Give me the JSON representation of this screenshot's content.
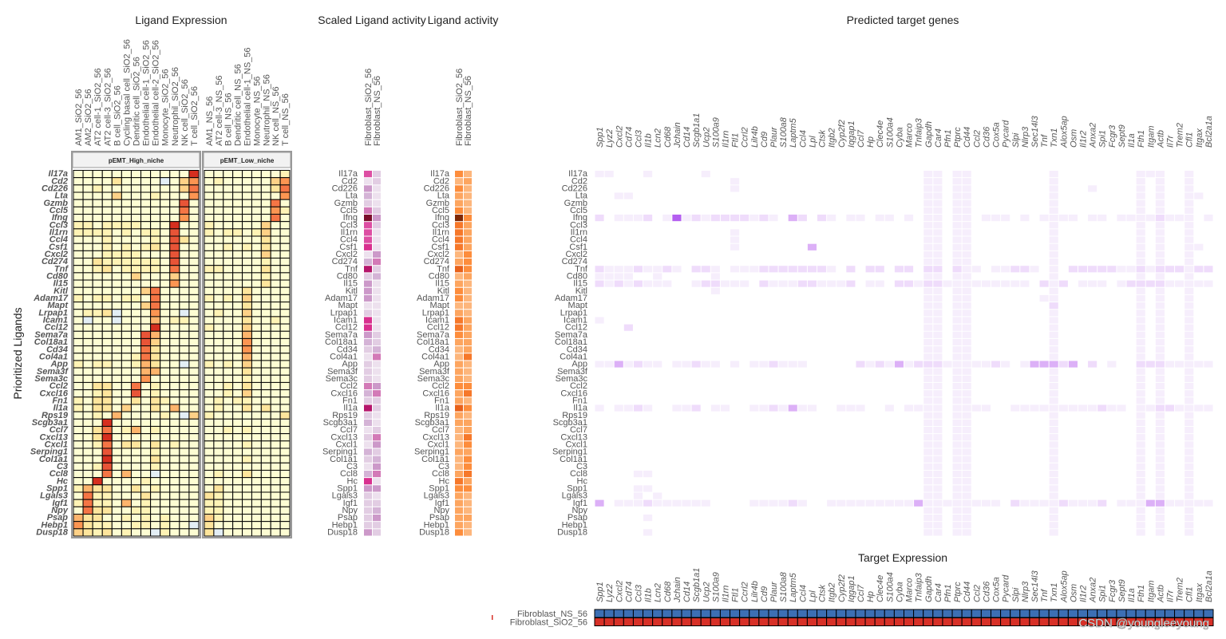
{
  "titles": {
    "ligand_expression": "Ligand Expression",
    "scaled_ligand_activity": "Scaled Ligand activity",
    "ligand_activity": "Ligand activity",
    "predicted_target_genes": "Predicted target genes",
    "target_expression": "Target Expression",
    "y_axis": "Prioritized Ligands"
  },
  "watermark": "CSDN @youngleeyoung",
  "chart_data": [
    {
      "type": "heatmap",
      "title": "Ligand Expression",
      "ylabel": "Prioritized Ligands",
      "ligands": [
        "Il17a",
        "Cd2",
        "Cd226",
        "Lta",
        "Gzmb",
        "Ccl5",
        "Ifng",
        "Ccl3",
        "Il1rn",
        "Ccl4",
        "Csf1",
        "Cxcl2",
        "Cd274",
        "Tnf",
        "Cd80",
        "Il15",
        "Kitl",
        "Adam17",
        "Mapt",
        "Lrpap1",
        "Icam1",
        "Ccl12",
        "Sema7a",
        "Col18a1",
        "Cd34",
        "Col4a1",
        "App",
        "Sema3f",
        "Sema3c",
        "Ccl2",
        "Cxcl16",
        "Fn1",
        "Il1a",
        "Rps19",
        "Scgb3a1",
        "Ccl7",
        "Cxcl13",
        "Cxcl1",
        "Serping1",
        "Col1a1",
        "C3",
        "Ccl8",
        "Hc",
        "Spp1",
        "Lgals3",
        "Igf1",
        "Npy",
        "Psap",
        "Hebp1",
        "Dusp18"
      ],
      "color_scale": [
        "#e3eef5",
        "#fdfdd3",
        "#fff3b5",
        "#fee59c",
        "#fed187",
        "#fdb46c",
        "#fc9552",
        "#f57545",
        "#e85437",
        "#d62f1f"
      ],
      "value_scale": "0 (low) to 9 (high) per cell",
      "panels": [
        {
          "strip": "pEMT_High_niche",
          "columns": [
            "AM1_SiO2_56",
            "AM2_SiO2_56",
            "AT2 cell-1_SiO2_56",
            "AT2 cell-3_SiO2_56",
            "B cell_SiO2_56",
            "Cycling basal cell_SiO2_56",
            "Dendritic cell_SiO2_56",
            "Endothelial cell-1_SiO2_56",
            "Endothelial cell-2_SiO2_56",
            "Monocyte_SiO2_56",
            "Neutrophil_SiO2_56",
            "NK cell_SiO2_56",
            "T cell_SiO2_56"
          ],
          "rows": [
            "1111111111119",
            "1111311110146",
            "1121111111147",
            "1111411121116",
            "1111111111181",
            "1111111111171",
            "1111111111161",
            "2212222111911",
            "2222121221811",
            "1112111121831",
            "1112121231811",
            "1112222111811",
            "1132222221811",
            "1123122221711",
            "1111114111411",
            "1111111111611",
            "1111111471111",
            "2122122171111",
            "1111111471111",
            "1223011161101",
            "1011011151221",
            "1111111191111",
            "1111111851111",
            "1111111841111",
            "1111111731111",
            "1111112731111",
            "2122112531101",
            "1111111551111",
            "1111111611111",
            "1133117121111",
            "1123118121111",
            "2133113132111",
            "2133141131511",
            "1121511112104",
            "1119111111111",
            "1137125121111",
            "1139111111111",
            "1127133131211",
            "1118111121111",
            "1119111131111",
            "1128111121111",
            "1117151101111",
            "1191111211111",
            "2533113121111",
            "1722111311111",
            "2722151211111",
            "1733112211111",
            "5331121212111",
            "6322112212110",
            "4323121102111"
          ]
        },
        {
          "strip": "pEMT_Low_niche",
          "columns": [
            "AM1_NS_56",
            "AT2 cell-3_NS_56",
            "B cell_NS_56",
            "Dendritic cell_NS_56",
            "Endothelial cell-1_NS_56",
            "Monocyte_NS_56",
            "Neutrophil_NS_56",
            "NK cell_NS_56",
            "T cell_NS_56"
          ],
          "rows": [
            "111111112",
            "121111146",
            "111111137",
            "111111116",
            "111111171",
            "111111162",
            "111111171",
            "211111411",
            "212212411",
            "111111311",
            "112121311",
            "111111411",
            "111111211",
            "221111311",
            "111111211",
            "111111311",
            "111131111",
            "212141111",
            "111131111",
            "121141111",
            "111131121",
            "211141111",
            "111151111",
            "111161111",
            "111161111",
            "111151111",
            "212141111",
            "111131111",
            "111121111",
            "112131111",
            "112141111",
            "121221111",
            "121131311",
            "211111113",
            "111111111",
            "112121111",
            "111111111",
            "111121111",
            "111111111",
            "111121111",
            "111111111",
            "121131111",
            "111111111",
            "131111111",
            "321111111",
            "221111111",
            "221111111",
            "421111111",
            "311111111",
            "301111111"
          ]
        }
      ]
    },
    {
      "type": "heatmap",
      "title": "Scaled Ligand activity",
      "columns": [
        "Fibroblast_SiO2_56",
        "Fibroblast_NS_56"
      ],
      "color_scale": [
        "#f5eef6",
        "#ede1ee",
        "#e2cde3",
        "#d4b3d6",
        "#cc99c9",
        "#d37ab7",
        "#dd4ea3",
        "#d8308f",
        "#b5156b",
        "#7a0d2b"
      ],
      "rows": [
        "62",
        "12",
        "41",
        "31",
        "21",
        "52",
        "94",
        "62",
        "61",
        "61",
        "71",
        "14",
        "35",
        "82",
        "23",
        "41",
        "41",
        "41",
        "11",
        "21",
        "71",
        "71",
        "42",
        "32",
        "23",
        "15",
        "21",
        "21",
        "21",
        "54",
        "35",
        "22",
        "82",
        "21",
        "31",
        "12",
        "25",
        "14",
        "32",
        "23",
        "14",
        "35",
        "71",
        "44",
        "21",
        "22",
        "23",
        "24",
        "22",
        "42"
      ]
    },
    {
      "type": "heatmap",
      "title": "Ligand activity",
      "columns": [
        "Fibroblast_SiO2_56",
        "Fibroblast_NS_56"
      ],
      "color_scale": [
        "#fff5eb",
        "#fee6ce",
        "#fdd0a2",
        "#fdb67c",
        "#fda55f",
        "#fd8d3c",
        "#f6782a",
        "#e8611a",
        "#cb4b08",
        "#7f2704"
      ],
      "rows": [
        "53",
        "34",
        "53",
        "43",
        "43",
        "53",
        "95",
        "64",
        "64",
        "64",
        "64",
        "35",
        "45",
        "75",
        "34",
        "43",
        "53",
        "53",
        "33",
        "43",
        "64",
        "64",
        "54",
        "44",
        "34",
        "36",
        "43",
        "43",
        "43",
        "55",
        "46",
        "43",
        "75",
        "43",
        "44",
        "34",
        "36",
        "35",
        "44",
        "35",
        "35",
        "46",
        "64",
        "55",
        "43",
        "43",
        "43",
        "44",
        "43",
        "53"
      ]
    },
    {
      "type": "heatmap",
      "title": "Predicted target genes",
      "targets": [
        "Spp1",
        "Lyz2",
        "Cxcl2",
        "Cd74",
        "Ccl3",
        "Il1b",
        "Lcn2",
        "Cd68",
        "Jchain",
        "Cd14",
        "Scgb1a1",
        "Ucp2",
        "S100a9",
        "Il1rn",
        "Ftl1",
        "Ccrl2",
        "Lilr4b",
        "Cd9",
        "Plaur",
        "S100a8",
        "Laptm5",
        "Ccl4",
        "Lpl",
        "Ctsk",
        "Itgb2",
        "Cyp2f2",
        "Iqgap1",
        "Ccl7",
        "Hp",
        "Clec4e",
        "S100a4",
        "Cyba",
        "Marco",
        "Tnfaip3",
        "Gapdh",
        "Car4",
        "Pfn1",
        "Ptprc",
        "Cd44",
        "Ccl2",
        "Cd36",
        "Cox5a",
        "Pycard",
        "Slpi",
        "Nlrp3",
        "Sec14l3",
        "Tnf",
        "Txn1",
        "Alox5ap",
        "Osm",
        "Il1r2",
        "Anxa2",
        "Spi1",
        "Fcgr3",
        "Sept9",
        "Il1a",
        "Fth1",
        "Itgam",
        "Actb",
        "Il7r",
        "Trem2",
        "Cfl1",
        "Itgax",
        "Bcl2a1a"
      ],
      "color_scale": [
        "#ffffff",
        "#f6eefc",
        "#efdcfb",
        "#dcb0f7",
        "#b45ef0"
      ],
      "value_scale": "0 (none) to 4 (strong regulatory potential)",
      "rows": [
        "11000100 00010000 00000000 00000000 00110110 00000001 00000000 11100100",
        "00000000 00000010 00000000 00000000 00110110 00000001 00000000 10100100",
        "00000000 00000010 00000000 00000000 00110110 00000001 00010000 10100100",
        "00110000 00000000 00000000 00000000 00110110 00000001 00000000 10100110",
        "00000000 00000000 00000000 00000000 00110110 00000001 00000000 10100100",
        "00000000 00000000 00000000 00000000 00110110 00000001 00000000 10100100",
        "20111201 41212222 12103202 10110110 10110110 11101011 11011011 11211101",
        "00000000 00000000 00000000 00000000 00110110 00000001 00000000 10100100",
        "00000000 00000010 00000000 00000000 00110110 00000001 00000000 10100100",
        "00000000 00000010 00000000 00000000 00110110 00000001 00000000 10100100",
        "00000000 00000010 00000030 00000000 00110110 00000001 00000000 10100110",
        "00000000 00000000 00000000 00000000 00110110 00000001 00000000 10100100",
        "00000000 00000000 00000000 00000000 00110110 00000001 00000000 10100100",
        "21112112 10221011 12222222 10202202 20220211 01122101 02222211 21222122",
        "11110010 00001000 00000000 00000000 00110110 00000001 00000000 10100100",
        "21212111 00122111 02111221 11201102 21221111 11111021 20111012 22211111",
        "00000000 00001000 00000000 00000000 00110110 00000001 00000000 10100100",
        "00000000 00000000 00000000 00000000 00110110 00000011 00000000 10100100",
        "00000000 00000000 00000000 00000000 00110110 00000002 00000000 10100100",
        "00000000 00000000 00000000 00000000 00110110 00000001 00000000 10100100",
        "10000000 00000000 00000000 00000000 00110110 00000001 00000000 10100100",
        "00020000 00000000 00000000 00000000 00110110 00000001 00000000 10100100",
        "00000000 00000000 00000000 00000000 00110110 00000001 00000000 10100100",
        "00000000 00000000 00000000 00000000 00110110 00000001 00000000 10100100",
        "00000000 00000000 00000000 00000000 00110110 00000001 00000000 10100100",
        "00000000 00000000 00000000 00000000 00110110 00000001 00000000 10100100",
        "11312110 11211010 11211100 00021213 12221111 12101333 23020100 22211111",
        "00000000 00000000 00000000 00000000 00110110 00000001 00000000 10100100",
        "00000000 00000000 00000000 00000000 00110110 00000001 00000000 10100100",
        "00000000 00000000 00000000 00000000 00110110 00000001 00000000 10100100",
        "00000000 00000000 00000000 00000000 00110110 00000001 00000000 10100100",
        "00000000 00000000 00000000 00000000 00110110 00000001 00000000 10100100",
        "10112100 11201100 11213110 01110010 11110111 10011111 11112110 11221111",
        "00000000 00000000 00000000 00000000 00110110 00000001 00000000 10100100",
        "00000000 00000000 00000000 00000000 00110110 00000001 00000000 10100100",
        "00000000 00000000 00000000 00000000 00110110 00000001 00000000 10100100",
        "00000000 00000000 00000000 00000000 00110110 00000001 00000000 10100100",
        "00000000 00000000 00000000 00000000 00110110 00000001 00000000 10100100",
        "00000000 00000000 00000000 00000000 00110110 00000001 00000000 10100100",
        "00000000 00000000 00000000 00000000 00110110 00000001 00000000 10100100",
        "00000000 00000000 00000000 00000000 00110110 00000001 00000000 10100100",
        "00001100 00000000 00000000 00000000 00110110 00000001 00000000 10100100",
        "00000000 00000000 00000000 00000000 00110110 00000001 00000000 10100100",
        "00001100 00000000 00000000 00000000 00110110 00000001 00000000 10100100",
        "00001010 00000000 00000000 00000000 00110110 00000001 00000000 10100100",
        "30111211 11110000 11112100 11111111 13111111 11021111 21112011 13311111",
        "00000000 00000000 00000000 00000000 00110110 00000001 00000000 10100100",
        "00000100 00000000 00000000 00000000 00110110 00000001 00000000 10100100",
        "00000000 00000000 00000000 00000000 00110110 00000001 00000000 10100100",
        "00000100 00000000 00000000 00000000 00110110 00000001 00000000 10100100"
      ]
    },
    {
      "type": "heatmap",
      "title": "Target Expression",
      "rows": [
        {
          "label": "Fibroblast_NS_56",
          "color": "#3c6fb4"
        },
        {
          "label": "Fibroblast_SiO2_56",
          "color": "#d73027"
        }
      ]
    }
  ]
}
